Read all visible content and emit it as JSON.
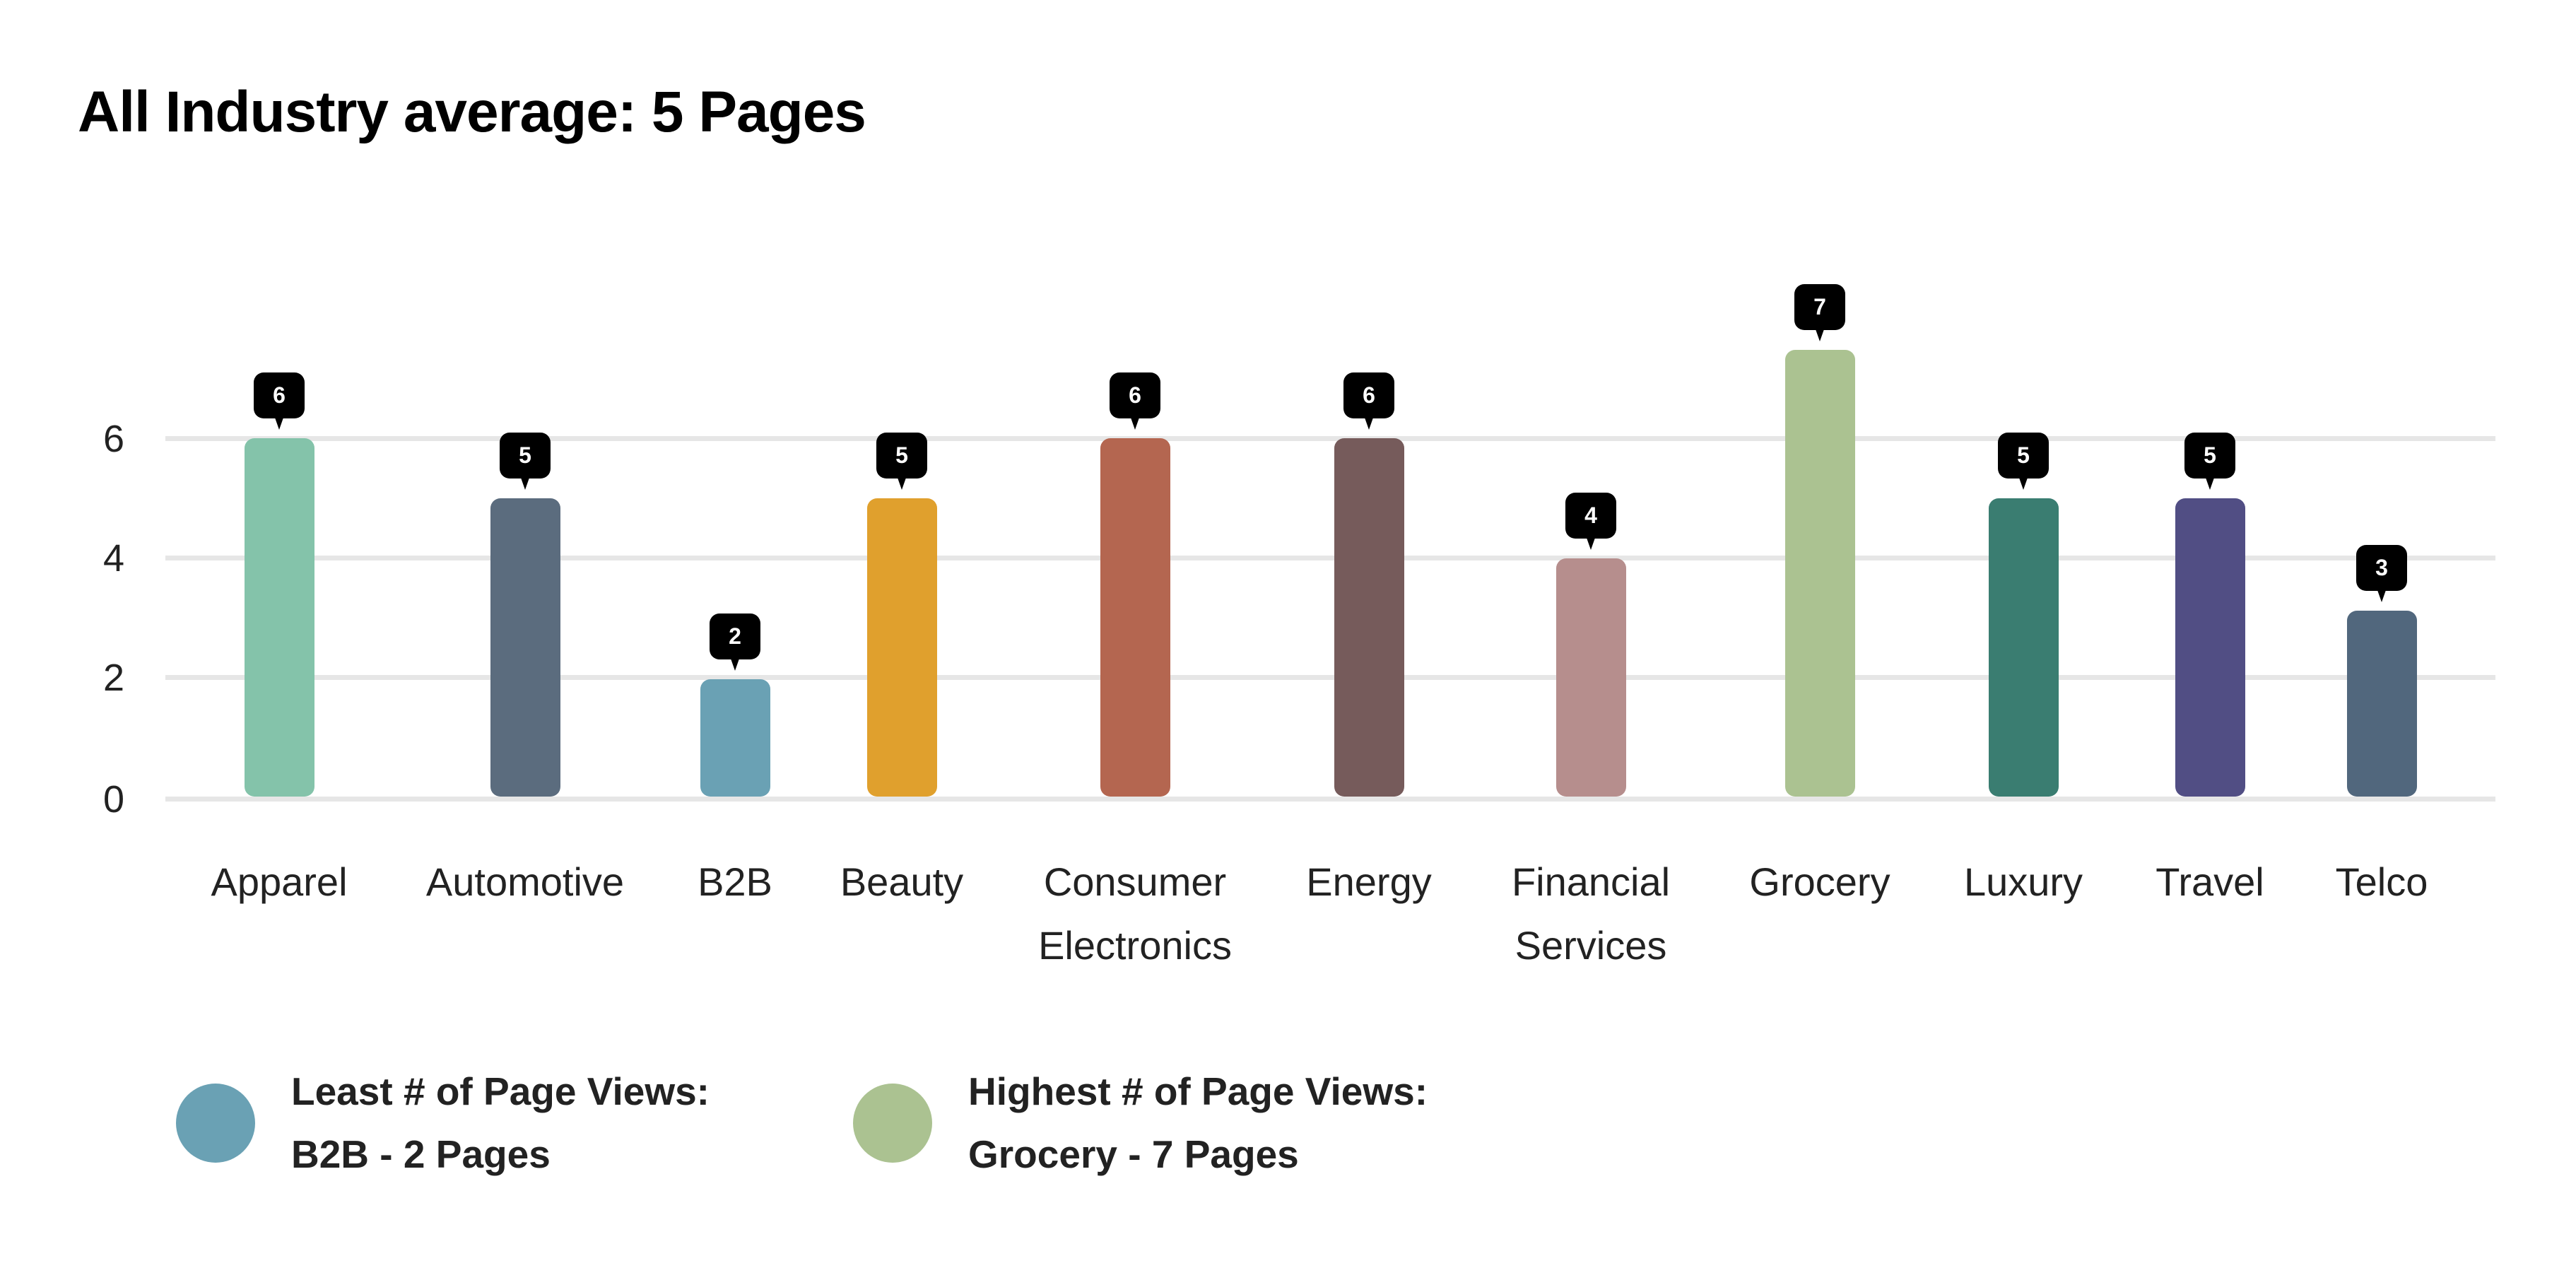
{
  "title": "All Industry average: 5 Pages",
  "chart_data": {
    "type": "bar",
    "title": "All Industry average: 5 Pages",
    "xlabel": "",
    "ylabel": "",
    "ylim": [
      0,
      7.5
    ],
    "yticks": [
      0,
      2,
      4,
      6
    ],
    "grid": true,
    "categories": [
      "Apparel",
      "Automotive",
      "B2B",
      "Beauty",
      "Consumer Electronics",
      "Energy",
      "Financial Services",
      "Grocery",
      "Luxury",
      "Travel",
      "Telco"
    ],
    "values": [
      6,
      5,
      2,
      5,
      6,
      6,
      4,
      7,
      5,
      5,
      3
    ],
    "data_labels": [
      "6",
      "5",
      "2",
      "5",
      "6",
      "6",
      "4",
      "7",
      "5",
      "5",
      "3"
    ],
    "colors": [
      "#84C3AA",
      "#5B6C7E",
      "#6AA1B4",
      "#E0A02D",
      "#B46650",
      "#765B5B",
      "#B68E8D",
      "#ABC291",
      "#3A7D71",
      "#514E84",
      "#51677D"
    ],
    "legend_position": "bottom-left"
  },
  "axis": {
    "y_ticks": [
      "0",
      "2",
      "4",
      "6"
    ]
  },
  "x_labels": [
    {
      "lines": [
        "Apparel"
      ]
    },
    {
      "lines": [
        "Automotive"
      ]
    },
    {
      "lines": [
        "B2B"
      ]
    },
    {
      "lines": [
        "Beauty"
      ]
    },
    {
      "lines": [
        "Consumer",
        "Electronics"
      ]
    },
    {
      "lines": [
        "Energy"
      ]
    },
    {
      "lines": [
        "Financial",
        "Services"
      ]
    },
    {
      "lines": [
        "Grocery"
      ]
    },
    {
      "lines": [
        "Luxury"
      ]
    },
    {
      "lines": [
        "Travel"
      ]
    },
    {
      "lines": [
        "Telco"
      ]
    }
  ],
  "legend": [
    {
      "line1": "Least # of Page Views:",
      "line2": "B2B - 2 Pages",
      "color": "#6AA1B4"
    },
    {
      "line1": "Highest # of Page Views:",
      "line2": "Grocery - 7 Pages",
      "color": "#ABC291"
    }
  ],
  "colors": {
    "gridline": "#E6E6E6",
    "badge_bg": "#000000",
    "badge_text": "#FFFFFF",
    "text": "#222222"
  }
}
